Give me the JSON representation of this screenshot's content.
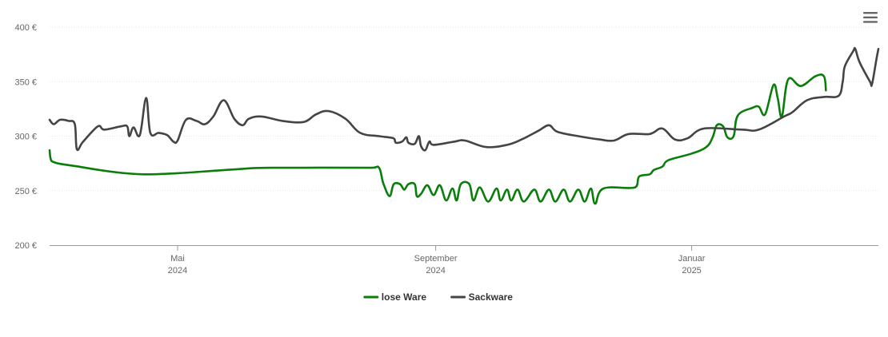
{
  "menu": {
    "icon": "hamburger-menu-icon"
  },
  "chart_data": {
    "type": "line",
    "title": "",
    "xlabel": "",
    "ylabel": "",
    "x_range": [
      "2024-03-01",
      "2025-03-31"
    ],
    "ylim": [
      200,
      400
    ],
    "y_ticks": [
      {
        "value": 200,
        "label": "200 €"
      },
      {
        "value": 250,
        "label": "250 €"
      },
      {
        "value": 300,
        "label": "300 €"
      },
      {
        "value": 350,
        "label": "350 €"
      },
      {
        "value": 400,
        "label": "400 €"
      }
    ],
    "x_ticks": [
      {
        "date": "2024-05-01",
        "month": "Mai",
        "year": "2024"
      },
      {
        "date": "2024-09-01",
        "month": "September",
        "year": "2024"
      },
      {
        "date": "2025-01-01",
        "month": "Januar",
        "year": "2025"
      }
    ],
    "grid": true,
    "legend_position": "bottom-center",
    "series": [
      {
        "name": "lose Ware",
        "color": "#0a7d0a",
        "points": [
          [
            "2024-03-01",
            287
          ],
          [
            "2024-03-02",
            277
          ],
          [
            "2024-03-15",
            272
          ],
          [
            "2024-04-01",
            267
          ],
          [
            "2024-04-15",
            265
          ],
          [
            "2024-05-01",
            266
          ],
          [
            "2024-06-01",
            270
          ],
          [
            "2024-06-15",
            271
          ],
          [
            "2024-08-01",
            271
          ],
          [
            "2024-08-05",
            271
          ],
          [
            "2024-08-07",
            257
          ],
          [
            "2024-08-10",
            245
          ],
          [
            "2024-08-12",
            256
          ],
          [
            "2024-08-15",
            256
          ],
          [
            "2024-08-17",
            251
          ],
          [
            "2024-08-19",
            256
          ],
          [
            "2024-08-22",
            256
          ],
          [
            "2024-08-23",
            245
          ],
          [
            "2024-08-25",
            247
          ],
          [
            "2024-08-28",
            255
          ],
          [
            "2024-08-31",
            246
          ],
          [
            "2024-09-03",
            255
          ],
          [
            "2024-09-06",
            241
          ],
          [
            "2024-09-09",
            252
          ],
          [
            "2024-09-11",
            241
          ],
          [
            "2024-09-13",
            256
          ],
          [
            "2024-09-17",
            256
          ],
          [
            "2024-09-19",
            241
          ],
          [
            "2024-09-22",
            253
          ],
          [
            "2024-09-26",
            240
          ],
          [
            "2024-09-30",
            252
          ],
          [
            "2024-10-02",
            241
          ],
          [
            "2024-10-05",
            251
          ],
          [
            "2024-10-07",
            241
          ],
          [
            "2024-10-10",
            251
          ],
          [
            "2024-10-13",
            240
          ],
          [
            "2024-10-18",
            251
          ],
          [
            "2024-10-21",
            240
          ],
          [
            "2024-10-25",
            251
          ],
          [
            "2024-10-28",
            240
          ],
          [
            "2024-11-01",
            251
          ],
          [
            "2024-11-04",
            240
          ],
          [
            "2024-11-08",
            251
          ],
          [
            "2024-11-11",
            240
          ],
          [
            "2024-11-14",
            252
          ],
          [
            "2024-11-16",
            238
          ],
          [
            "2024-11-20",
            252
          ],
          [
            "2024-12-05",
            253
          ],
          [
            "2024-12-07",
            263
          ],
          [
            "2024-12-12",
            265
          ],
          [
            "2024-12-14",
            269
          ],
          [
            "2024-12-18",
            272
          ],
          [
            "2024-12-21",
            278
          ],
          [
            "2025-01-01",
            284
          ],
          [
            "2025-01-08",
            290
          ],
          [
            "2025-01-11",
            299
          ],
          [
            "2025-01-13",
            310
          ],
          [
            "2025-01-16",
            309
          ],
          [
            "2025-01-18",
            299
          ],
          [
            "2025-01-21",
            300
          ],
          [
            "2025-01-23",
            319
          ],
          [
            "2025-01-30",
            326
          ],
          [
            "2025-02-02",
            327
          ],
          [
            "2025-02-05",
            320
          ],
          [
            "2025-02-09",
            347
          ],
          [
            "2025-02-11",
            335
          ],
          [
            "2025-02-13",
            318
          ],
          [
            "2025-02-16",
            352
          ],
          [
            "2025-02-22",
            346
          ],
          [
            "2025-03-01",
            355
          ],
          [
            "2025-03-05",
            355
          ],
          [
            "2025-03-06",
            342
          ]
        ]
      },
      {
        "name": "Sackware",
        "color": "#444444",
        "points": [
          [
            "2024-03-01",
            315
          ],
          [
            "2024-03-03",
            311
          ],
          [
            "2024-03-06",
            315
          ],
          [
            "2024-03-10",
            314
          ],
          [
            "2024-03-13",
            311
          ],
          [
            "2024-03-14",
            288
          ],
          [
            "2024-03-17",
            295
          ],
          [
            "2024-03-24",
            309
          ],
          [
            "2024-03-27",
            306
          ],
          [
            "2024-04-04",
            309
          ],
          [
            "2024-04-07",
            309
          ],
          [
            "2024-04-08",
            300
          ],
          [
            "2024-04-10",
            308
          ],
          [
            "2024-04-13",
            301
          ],
          [
            "2024-04-16",
            335
          ],
          [
            "2024-04-18",
            303
          ],
          [
            "2024-04-22",
            303
          ],
          [
            "2024-04-26",
            301
          ],
          [
            "2024-04-29",
            295
          ],
          [
            "2024-05-01",
            296
          ],
          [
            "2024-05-05",
            315
          ],
          [
            "2024-05-10",
            314
          ],
          [
            "2024-05-14",
            311
          ],
          [
            "2024-05-18",
            318
          ],
          [
            "2024-05-23",
            333
          ],
          [
            "2024-05-28",
            316
          ],
          [
            "2024-06-01",
            310
          ],
          [
            "2024-06-04",
            316
          ],
          [
            "2024-06-10",
            318
          ],
          [
            "2024-06-20",
            314
          ],
          [
            "2024-06-30",
            313
          ],
          [
            "2024-07-06",
            320
          ],
          [
            "2024-07-12",
            323
          ],
          [
            "2024-07-20",
            316
          ],
          [
            "2024-07-27",
            303
          ],
          [
            "2024-08-05",
            300
          ],
          [
            "2024-08-12",
            298
          ],
          [
            "2024-08-13",
            294
          ],
          [
            "2024-08-16",
            295
          ],
          [
            "2024-08-18",
            299
          ],
          [
            "2024-08-19",
            294
          ],
          [
            "2024-08-22",
            293
          ],
          [
            "2024-08-24",
            300
          ],
          [
            "2024-08-25",
            291
          ],
          [
            "2024-08-27",
            287
          ],
          [
            "2024-08-29",
            295
          ],
          [
            "2024-08-31",
            292
          ],
          [
            "2024-09-10",
            295
          ],
          [
            "2024-09-15",
            296
          ],
          [
            "2024-09-25",
            290
          ],
          [
            "2024-10-05",
            292
          ],
          [
            "2024-10-12",
            297
          ],
          [
            "2024-10-20",
            305
          ],
          [
            "2024-10-25",
            310
          ],
          [
            "2024-10-29",
            304
          ],
          [
            "2024-11-08",
            300
          ],
          [
            "2024-11-18",
            297
          ],
          [
            "2024-11-25",
            296
          ],
          [
            "2024-12-02",
            302
          ],
          [
            "2024-12-12",
            302
          ],
          [
            "2024-12-18",
            307
          ],
          [
            "2024-12-24",
            297
          ],
          [
            "2024-12-30",
            298
          ],
          [
            "2025-01-07",
            307
          ],
          [
            "2025-01-25",
            306
          ],
          [
            "2025-02-02",
            306
          ],
          [
            "2025-02-14",
            318
          ],
          [
            "2025-02-18",
            322
          ],
          [
            "2025-02-25",
            333
          ],
          [
            "2025-03-05",
            336
          ],
          [
            "2025-03-12",
            337
          ],
          [
            "2025-03-14",
            350
          ],
          [
            "2025-03-15",
            364
          ],
          [
            "2025-03-19",
            378
          ],
          [
            "2025-03-20",
            380
          ],
          [
            "2025-03-22",
            368
          ],
          [
            "2025-03-27",
            350
          ],
          [
            "2025-03-28",
            348
          ],
          [
            "2025-03-30",
            370
          ],
          [
            "2025-03-31",
            380
          ]
        ]
      }
    ]
  }
}
